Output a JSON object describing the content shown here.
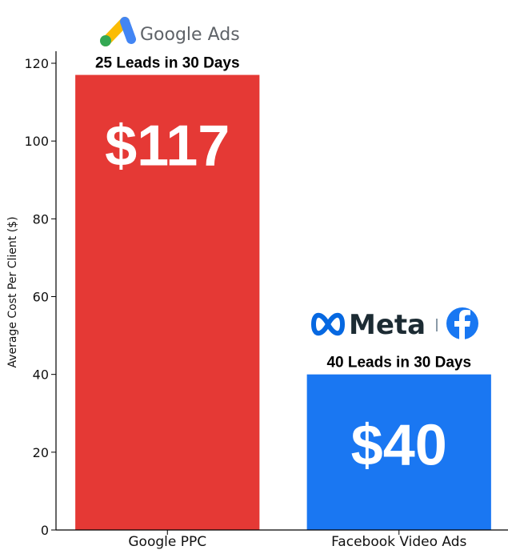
{
  "chart_data": {
    "type": "bar",
    "categories": [
      "Google PPC",
      "Facebook Video Ads"
    ],
    "values": [
      117,
      40
    ],
    "value_labels": [
      "$117",
      "$40"
    ],
    "annotations": [
      "25 Leads in 30 Days",
      "40 Leads in 30 Days"
    ],
    "colors": [
      "#e53935",
      "#1a77f2"
    ],
    "title": "",
    "xlabel": "",
    "ylabel": "Average Cost Per Client ($)",
    "ylim": [
      0,
      120
    ],
    "yticks": [
      0,
      20,
      40,
      60,
      80,
      100,
      120
    ],
    "grid": false
  },
  "logos": {
    "google": {
      "icon": "google-ads-icon",
      "text": "Google Ads"
    },
    "meta": {
      "icon": "meta-infinity-icon",
      "text": "Meta",
      "secondary_icon": "facebook-icon"
    }
  }
}
